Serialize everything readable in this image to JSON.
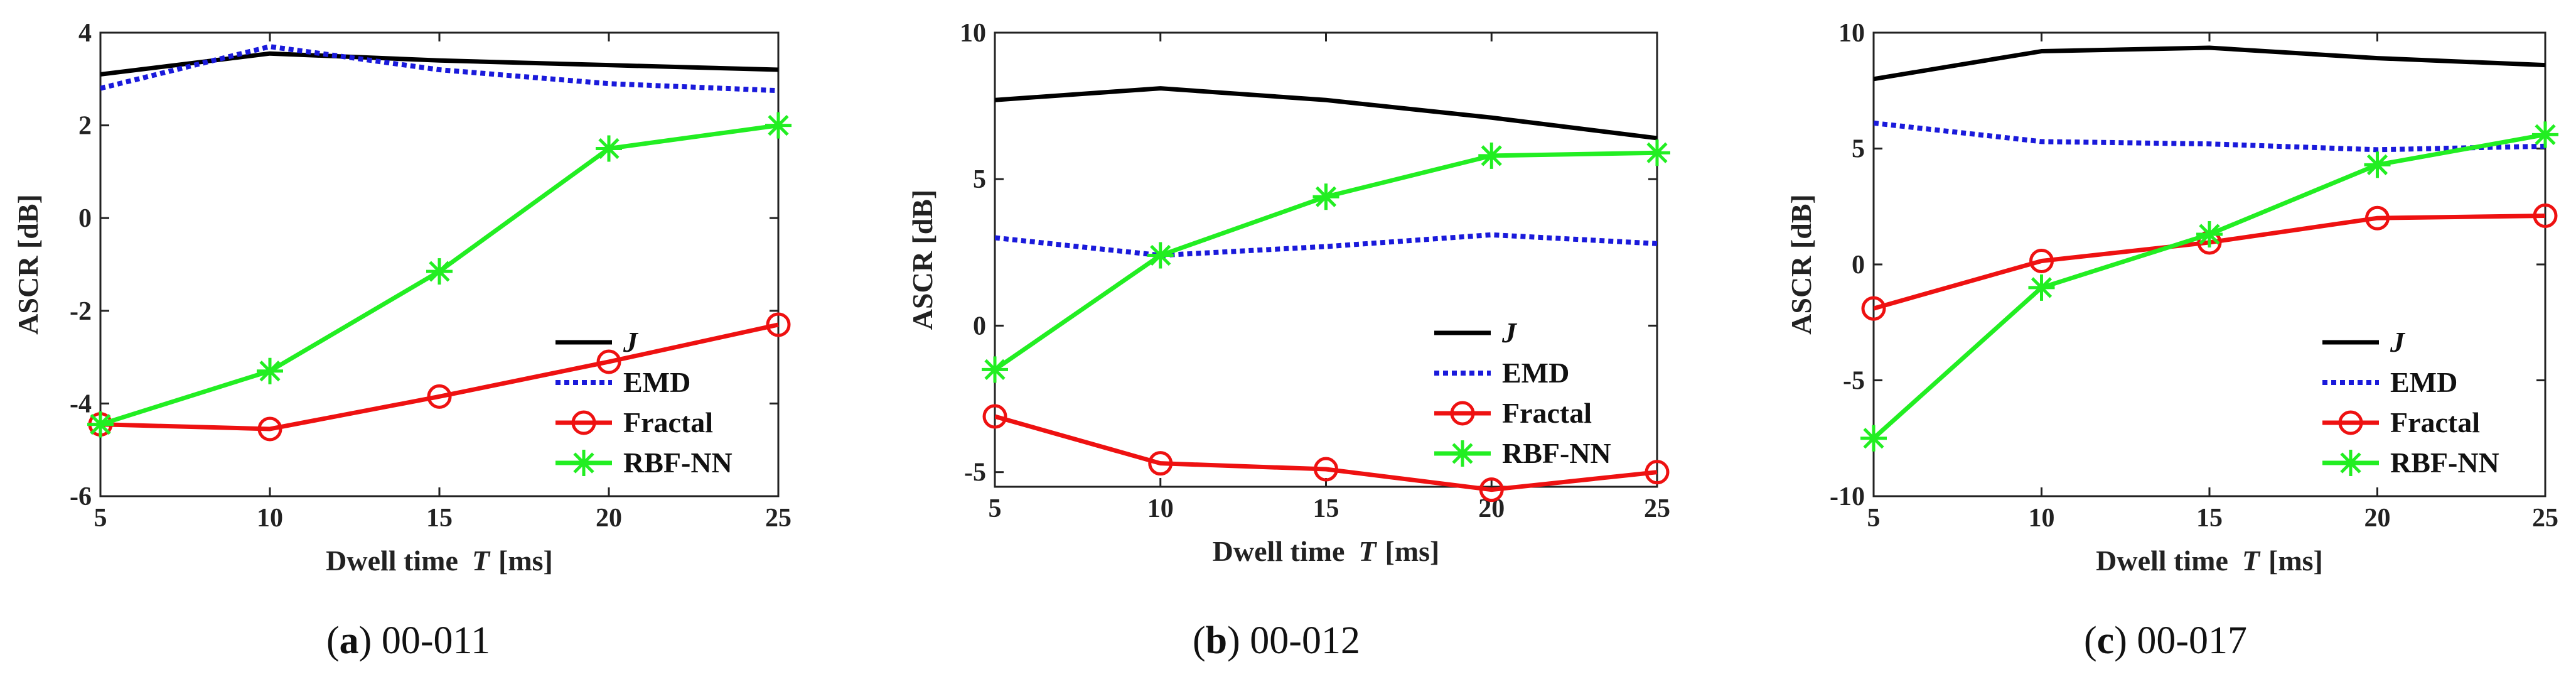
{
  "chart_data": [
    {
      "type": "line",
      "caption_label": "a",
      "caption_text": "00-011",
      "xlabel": "Dwell time",
      "xlabel_var": "T",
      "xlabel_unit": "[ms]",
      "ylabel": "ASCR [dB]",
      "xlim": [
        5,
        25
      ],
      "ylim": [
        -6,
        4
      ],
      "xticks": [
        5,
        10,
        15,
        20,
        25
      ],
      "yticks": [
        -6,
        -4,
        -2,
        0,
        2,
        4
      ],
      "legend_position": "bottom-right",
      "series": [
        {
          "name": "J",
          "x": [
            5,
            10,
            15,
            20,
            25
          ],
          "values": [
            3.1,
            3.55,
            3.4,
            3.3,
            3.2
          ]
        },
        {
          "name": "EMD",
          "x": [
            5,
            10,
            15,
            20,
            25
          ],
          "values": [
            2.8,
            3.7,
            3.2,
            2.9,
            2.75
          ]
        },
        {
          "name": "Fractal",
          "x": [
            5,
            10,
            15,
            20,
            25
          ],
          "values": [
            -4.45,
            -4.55,
            -3.85,
            -3.1,
            -2.3
          ]
        },
        {
          "name": "RBF-NN",
          "x": [
            5,
            10,
            15,
            20,
            25
          ],
          "values": [
            -4.45,
            -3.3,
            -1.15,
            1.5,
            2.0
          ]
        }
      ]
    },
    {
      "type": "line",
      "caption_label": "b",
      "caption_text": "00-012",
      "xlabel": "Dwell time",
      "xlabel_var": "T",
      "xlabel_unit": "[ms]",
      "ylabel": "ASCR [dB]",
      "xlim": [
        5,
        25
      ],
      "ylim": [
        -5.5,
        10
      ],
      "xticks": [
        5,
        10,
        15,
        20,
        25
      ],
      "yticks": [
        -5,
        0,
        5,
        10
      ],
      "legend_position": "bottom-right",
      "series": [
        {
          "name": "J",
          "x": [
            5,
            10,
            15,
            20,
            25
          ],
          "values": [
            7.7,
            8.1,
            7.7,
            7.1,
            6.4
          ]
        },
        {
          "name": "EMD",
          "x": [
            5,
            10,
            15,
            20,
            25
          ],
          "values": [
            3.0,
            2.4,
            2.7,
            3.1,
            2.8
          ]
        },
        {
          "name": "Fractal",
          "x": [
            5,
            10,
            15,
            20,
            25
          ],
          "values": [
            -3.1,
            -4.7,
            -4.9,
            -5.6,
            -5.0
          ]
        },
        {
          "name": "RBF-NN",
          "x": [
            5,
            10,
            15,
            20,
            25
          ],
          "values": [
            -1.5,
            2.4,
            4.4,
            5.8,
            5.9
          ]
        }
      ]
    },
    {
      "type": "line",
      "caption_label": "c",
      "caption_text": "00-017",
      "xlabel": "Dwell time",
      "xlabel_var": "T",
      "xlabel_unit": "[ms]",
      "ylabel": "ASCR [dB]",
      "xlim": [
        5,
        25
      ],
      "ylim": [
        -10,
        10
      ],
      "xticks": [
        5,
        10,
        15,
        20,
        25
      ],
      "yticks": [
        -10,
        -5,
        0,
        5,
        10
      ],
      "legend_position": "bottom-right",
      "series": [
        {
          "name": "J",
          "x": [
            5,
            10,
            15,
            20,
            25
          ],
          "values": [
            8.0,
            9.2,
            9.35,
            8.9,
            8.6
          ]
        },
        {
          "name": "EMD",
          "x": [
            5,
            10,
            15,
            20,
            25
          ],
          "values": [
            6.1,
            5.3,
            5.2,
            4.95,
            5.1
          ]
        },
        {
          "name": "Fractal",
          "x": [
            5,
            10,
            15,
            20,
            25
          ],
          "values": [
            -1.9,
            0.15,
            0.95,
            2.0,
            2.1
          ]
        },
        {
          "name": "RBF-NN",
          "x": [
            5,
            10,
            15,
            20,
            25
          ],
          "values": [
            -7.5,
            -1.0,
            1.3,
            4.3,
            5.6
          ]
        }
      ]
    }
  ],
  "series_styles": {
    "J": {
      "color": "#000000",
      "dash": "solid",
      "marker": "none"
    },
    "EMD": {
      "color": "#1a1adb",
      "dash": "dotted",
      "marker": "none"
    },
    "Fractal": {
      "color": "#ee1111",
      "dash": "solid",
      "marker": "circle"
    },
    "RBF-NN": {
      "color": "#22ee22",
      "dash": "solid",
      "marker": "asterisk"
    }
  }
}
